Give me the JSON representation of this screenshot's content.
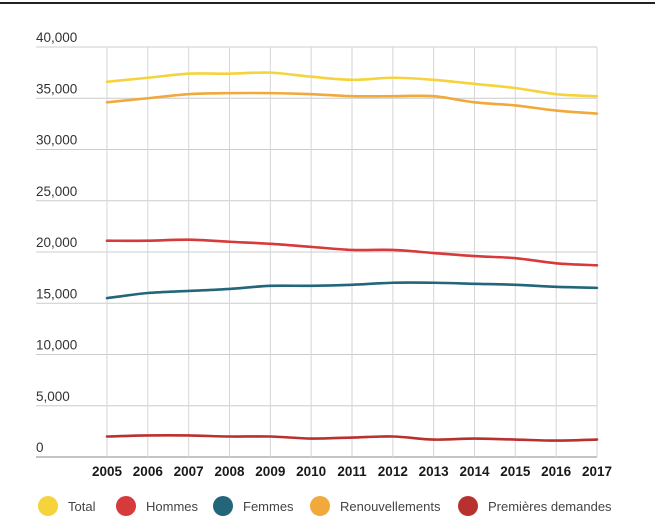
{
  "chart_data": {
    "type": "line",
    "title": "",
    "xlabel": "",
    "ylabel": "",
    "x": [
      "2005",
      "2006",
      "2007",
      "2008",
      "2009",
      "2010",
      "2011",
      "2012",
      "2013",
      "2014",
      "2015",
      "2016",
      "2017"
    ],
    "ylim": [
      0,
      40000
    ],
    "yticks": [
      {
        "value": 0,
        "label": "0"
      },
      {
        "value": 5000,
        "label": "5,000"
      },
      {
        "value": 10000,
        "label": "10,000"
      },
      {
        "value": 15000,
        "label": "15,000"
      },
      {
        "value": 20000,
        "label": "20,000"
      },
      {
        "value": 25000,
        "label": "25,000"
      },
      {
        "value": 30000,
        "label": "30,000"
      },
      {
        "value": 35000,
        "label": "35,000"
      },
      {
        "value": 40000,
        "label": "40,000"
      }
    ],
    "grid": true,
    "legend_position": "bottom",
    "series": [
      {
        "name": "Total",
        "color": "#f5d33d",
        "values": [
          36600,
          37000,
          37400,
          37400,
          37500,
          37100,
          36800,
          37000,
          36800,
          36400,
          36000,
          35400,
          35200
        ]
      },
      {
        "name": "Hommes",
        "color": "#d63a3a",
        "values": [
          21100,
          21100,
          21200,
          21000,
          20800,
          20500,
          20200,
          20200,
          19900,
          19600,
          19400,
          18900,
          18700
        ]
      },
      {
        "name": "Femmes",
        "color": "#23667a",
        "values": [
          15500,
          16000,
          16200,
          16400,
          16700,
          16700,
          16800,
          17000,
          17000,
          16900,
          16800,
          16600,
          16500
        ]
      },
      {
        "name": "Renouvellements",
        "color": "#f0a93a",
        "values": [
          34600,
          35000,
          35400,
          35500,
          35500,
          35400,
          35200,
          35200,
          35200,
          34600,
          34300,
          33800,
          33500
        ]
      },
      {
        "name": "Premières demandes",
        "color": "#b8312f",
        "values": [
          2000,
          2100,
          2100,
          2000,
          2000,
          1800,
          1900,
          2000,
          1700,
          1800,
          1700,
          1600,
          1700
        ]
      }
    ]
  }
}
